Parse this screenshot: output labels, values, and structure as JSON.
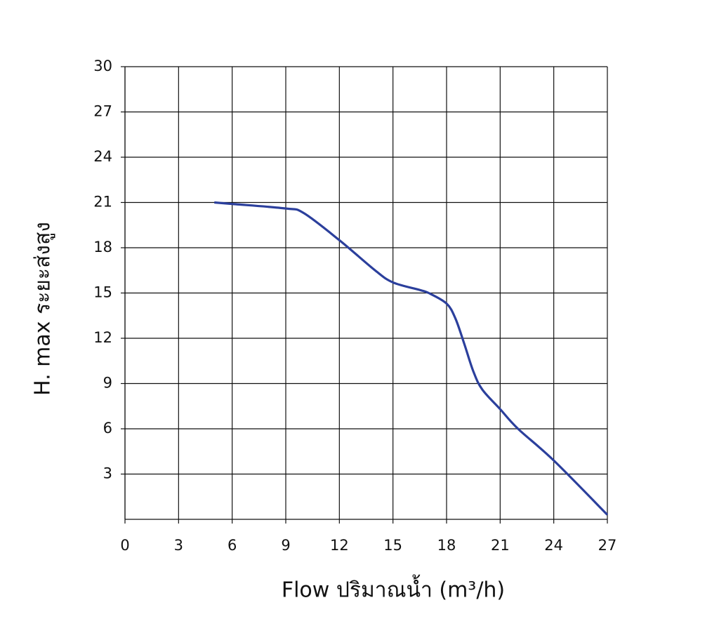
{
  "chart_data": {
    "type": "line",
    "x_label": "Flow  ปริมาณน้ำ (m³/h)",
    "y_label": "H. max  ระยะส่งสูง",
    "x": [
      5,
      6,
      9,
      10,
      12,
      14,
      15,
      16.5,
      17,
      18,
      18.5,
      19,
      19.5,
      20,
      21,
      22,
      24,
      27
    ],
    "series": [
      {
        "color": "#2b3f9c",
        "values": [
          21,
          20.9,
          20.6,
          20.3,
          18.5,
          16.5,
          15.7,
          15.2,
          15.0,
          14.3,
          13.3,
          11.6,
          9.8,
          8.6,
          7.3,
          6.0,
          3.9,
          0.3
        ]
      }
    ],
    "xlim": [
      0,
      27
    ],
    "xticks": [
      0,
      3,
      6,
      9,
      12,
      15,
      18,
      21,
      24,
      27
    ],
    "ylim": [
      0,
      30
    ],
    "yticks": [
      3,
      6,
      9,
      12,
      15,
      18,
      21,
      24,
      27,
      30
    ],
    "grid": true
  }
}
